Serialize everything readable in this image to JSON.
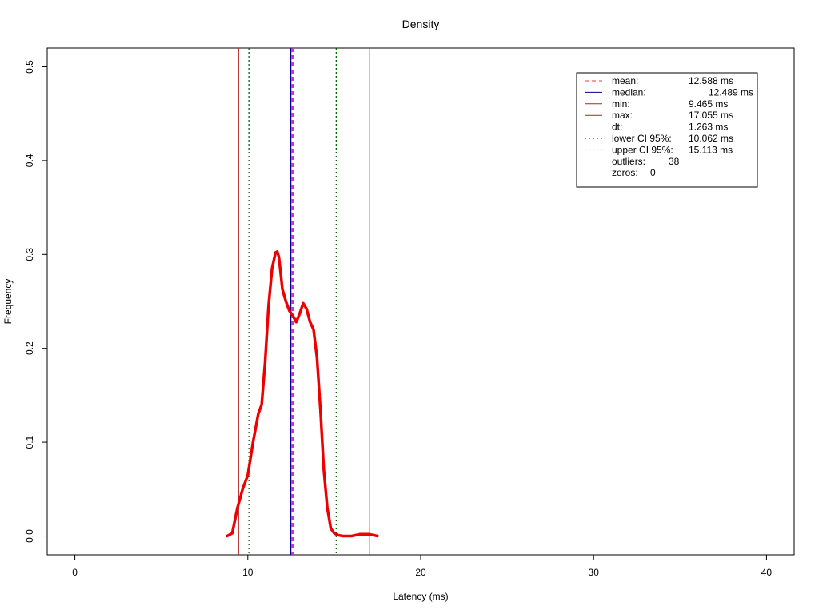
{
  "chart_data": {
    "type": "line",
    "title": "Density",
    "xlabel": "Latency (ms)",
    "ylabel": "Frequency",
    "xlim": [
      -1.6,
      41.6
    ],
    "ylim": [
      -0.02,
      0.52
    ],
    "x_ticks": [
      0,
      10,
      20,
      30,
      40
    ],
    "y_ticks": [
      0.0,
      0.1,
      0.2,
      0.3,
      0.4,
      0.5
    ],
    "x_tick_labels": [
      "0",
      "10",
      "20",
      "30",
      "40"
    ],
    "y_tick_labels": [
      "0.0",
      "0.1",
      "0.2",
      "0.3",
      "0.4",
      "0.5"
    ],
    "grid": false,
    "legend_position": "top-right",
    "colors": {
      "density": "#ee0000",
      "mean": "#ff3333",
      "median": "#00008b",
      "minmax": "#b22222",
      "ci": "#006400",
      "baseline": "#666666",
      "dashed_overlay": "#cc33cc"
    },
    "series": [
      {
        "x": [
          8.8,
          9.1,
          9.4,
          9.7,
          10.0,
          10.3,
          10.6,
          10.8,
          11.0,
          11.2,
          11.4,
          11.6,
          11.7,
          11.8,
          11.9,
          12.0,
          12.2,
          12.4,
          12.6,
          12.8,
          13.0,
          13.2,
          13.4,
          13.6,
          13.8,
          14.0,
          14.2,
          14.4,
          14.6,
          14.8,
          15.0,
          15.2,
          15.5,
          16.0,
          16.5,
          17.0,
          17.5
        ],
        "y": [
          0.0,
          0.003,
          0.03,
          0.05,
          0.065,
          0.1,
          0.13,
          0.14,
          0.185,
          0.245,
          0.285,
          0.302,
          0.303,
          0.297,
          0.28,
          0.263,
          0.25,
          0.24,
          0.235,
          0.228,
          0.237,
          0.248,
          0.242,
          0.228,
          0.22,
          0.19,
          0.135,
          0.07,
          0.03,
          0.008,
          0.003,
          0.001,
          0.0,
          0.0,
          0.002,
          0.002,
          0.0
        ]
      }
    ],
    "reference_lines": [
      {
        "key": "min",
        "x": 9.465,
        "style": "solid",
        "color": "#b22222"
      },
      {
        "key": "lower_ci",
        "x": 10.062,
        "style": "dotted",
        "color": "#006400"
      },
      {
        "key": "median",
        "x": 12.489,
        "style": "solid",
        "color": "#00008b"
      },
      {
        "key": "mean",
        "x": 12.588,
        "style": "dashed",
        "color": "#cc33cc"
      },
      {
        "key": "upper_ci",
        "x": 15.113,
        "style": "dotted",
        "color": "#006400"
      },
      {
        "key": "max",
        "x": 17.055,
        "style": "solid",
        "color": "#b22222"
      }
    ],
    "legend": [
      {
        "label": "mean:",
        "value": "12.588 ms",
        "line": "dashed",
        "color": "#ff3333"
      },
      {
        "label": "median:",
        "value": "12.489 ms",
        "line": "solid",
        "color": "#00008b",
        "indent": true
      },
      {
        "label": "min:",
        "value": "9.465 ms",
        "line": "solid",
        "color": "#b22222"
      },
      {
        "label": "max:",
        "value": "17.055 ms",
        "line": "solid",
        "color": "#b22222"
      },
      {
        "label": "dt:",
        "value": "1.263 ms",
        "line": "none",
        "color": ""
      },
      {
        "label": "lower CI 95%:",
        "value": "10.062 ms",
        "line": "dotted",
        "color": "#006400"
      },
      {
        "label": "upper CI 95%:",
        "value": "15.113 ms",
        "line": "dotted",
        "color": "#006400"
      },
      {
        "label": "outliers:",
        "value": "38",
        "line": "none",
        "color": "",
        "short": true
      },
      {
        "label": "zeros:",
        "value": "0",
        "line": "none",
        "color": "",
        "short": true
      }
    ]
  }
}
